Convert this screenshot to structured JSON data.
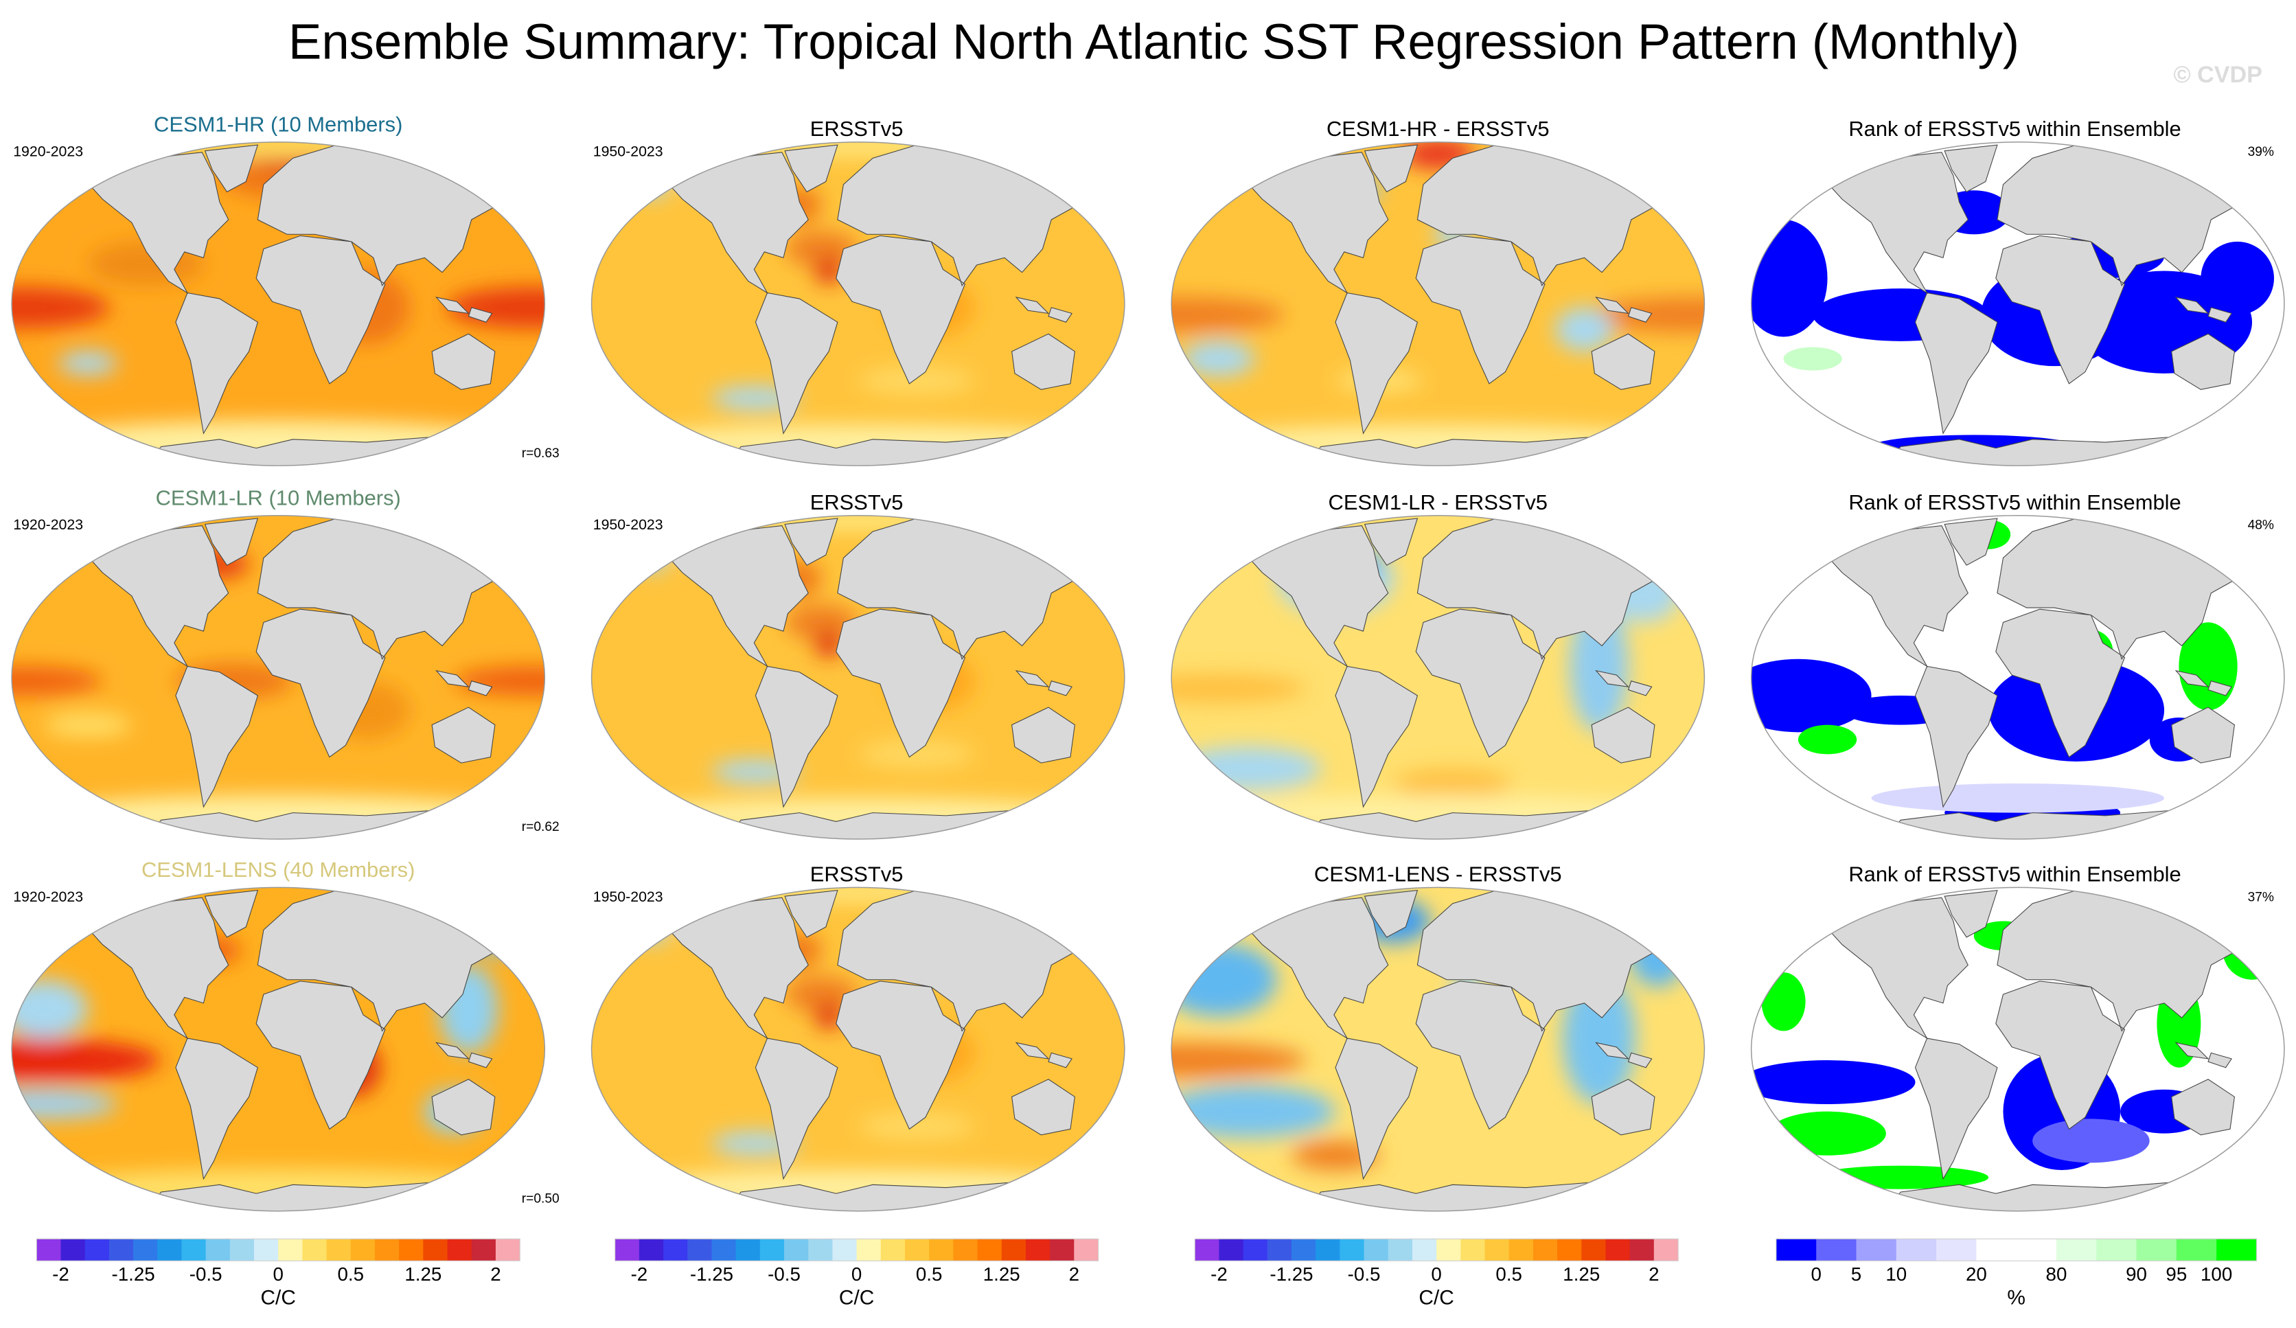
{
  "title": "Ensemble Summary: Tropical North Atlantic SST Regression Pattern (Monthly)",
  "watermark": "© CVDP",
  "rows": [
    {
      "model": {
        "title": "CESM1-HR (10 Members)",
        "title_color": "#1a6e8e",
        "years": "1920-2023",
        "pattern_correlation": "r=0.63"
      },
      "observed": {
        "title": "ERSSTv5",
        "years": "1950-2023"
      },
      "difference": {
        "title": "CESM1-HR - ERSSTv5"
      },
      "rank": {
        "title": "Rank of ERSSTv5 within Ensemble",
        "percent": "39%"
      }
    },
    {
      "model": {
        "title": "CESM1-LR (10 Members)",
        "title_color": "#5e8a6c",
        "years": "1920-2023",
        "pattern_correlation": "r=0.62"
      },
      "observed": {
        "title": "ERSSTv5",
        "years": "1950-2023"
      },
      "difference": {
        "title": "CESM1-LR - ERSSTv5"
      },
      "rank": {
        "title": "Rank of ERSSTv5 within Ensemble",
        "percent": "48%"
      }
    },
    {
      "model": {
        "title": "CESM1-LENS (40 Members)",
        "title_color": "#d6c87c",
        "years": "1920-2023",
        "pattern_correlation": "r=0.50"
      },
      "observed": {
        "title": "ERSSTv5",
        "years": "1950-2023"
      },
      "difference": {
        "title": "CESM1-LENS - ERSSTv5"
      },
      "rank": {
        "title": "Rank of ERSSTv5 within Ensemble",
        "percent": "37%"
      }
    }
  ],
  "regression_colorbar": {
    "colors": [
      "#8e36e8",
      "#3f20d8",
      "#3a3af0",
      "#3a5ae6",
      "#2f7ae8",
      "#1e96e8",
      "#32b4f0",
      "#78c8f0",
      "#a0d8f0",
      "#d2ecf8",
      "#fff7b0",
      "#ffe066",
      "#ffc83c",
      "#ffb020",
      "#ff9410",
      "#ff7800",
      "#f04a00",
      "#e62814",
      "#c82838",
      "#f8a8b0"
    ],
    "levels": [
      -2,
      -1.75,
      -1.5,
      -1.25,
      -1,
      -0.75,
      -0.5,
      -0.35,
      -0.2,
      0,
      0.2,
      0.35,
      0.5,
      0.75,
      1,
      1.25,
      1.5,
      1.75,
      2
    ],
    "ticks": [
      -2,
      -1.25,
      -0.5,
      0,
      0.5,
      1.25,
      2
    ],
    "units": "C/C"
  },
  "rank_colorbar": {
    "colors": [
      "#0000ff",
      "#6464ff",
      "#a0a0ff",
      "#d0d0ff",
      "#e4e4ff",
      "#ffffff",
      "#ffffff",
      "#e0ffe0",
      "#c8ffc8",
      "#a0ffa0",
      "#60ff60",
      "#00ff00"
    ],
    "levels": [
      0,
      5,
      10,
      15,
      20,
      50,
      80,
      85,
      90,
      95,
      100
    ],
    "ticks": [
      0,
      5,
      10,
      20,
      80,
      90,
      95,
      100
    ],
    "units": "%"
  }
}
